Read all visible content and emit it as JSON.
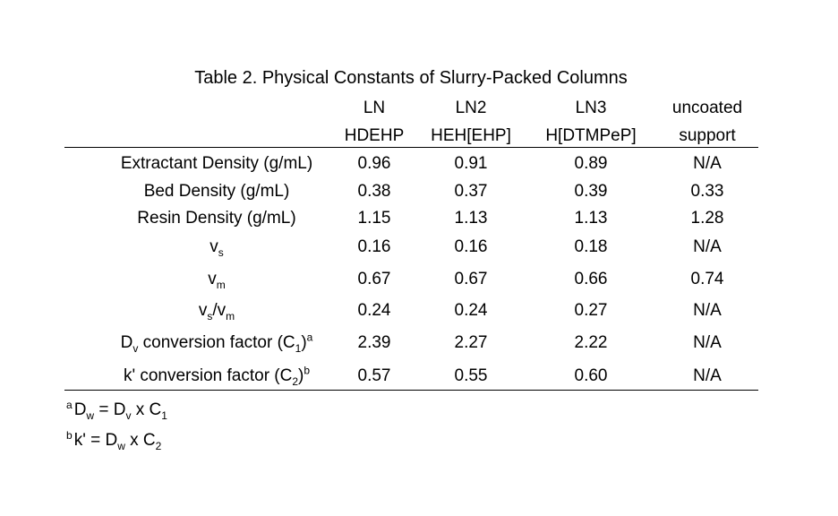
{
  "caption": "Table 2. Physical Constants of Slurry-Packed Columns",
  "columns": [
    {
      "line1": "LN",
      "line2": "HDEHP"
    },
    {
      "line1": "LN2",
      "line2": "HEH[EHP]"
    },
    {
      "line1": "LN3",
      "line2": "H[DTMPeP]"
    },
    {
      "line1": "uncoated",
      "line2": "support"
    }
  ],
  "rows": [
    {
      "label": "Extractant Density (g/mL)",
      "values": [
        "0.96",
        "0.91",
        "0.89",
        "N/A"
      ]
    },
    {
      "label": "Bed Density (g/mL)",
      "values": [
        "0.38",
        "0.37",
        "0.39",
        "0.33"
      ]
    },
    {
      "label": "Resin Density (g/mL)",
      "values": [
        "1.15",
        "1.13",
        "1.13",
        "1.28"
      ]
    },
    {
      "label_main": "v",
      "label_sub": "s",
      "values": [
        "0.16",
        "0.16",
        "0.18",
        "N/A"
      ]
    },
    {
      "label_main": "v",
      "label_sub": "m",
      "values": [
        "0.67",
        "0.67",
        "0.66",
        "0.74"
      ]
    },
    {
      "label_a": "v",
      "label_a_sub": "s",
      "label_b": "/v",
      "label_b_sub": "m",
      "values": [
        "0.24",
        "0.24",
        "0.27",
        "N/A"
      ]
    },
    {
      "label_a": "D",
      "label_a_sub": "v",
      "label_b": " conversion factor (C",
      "label_b_sub": "1",
      "label_c": ")",
      "label_sup": "a",
      "values": [
        "2.39",
        "2.27",
        "2.22",
        "N/A"
      ]
    },
    {
      "label_a": "k' conversion factor (C",
      "label_a_sub": "2",
      "label_c": ")",
      "label_sup": "b",
      "values": [
        "0.57",
        "0.55",
        "0.60",
        "N/A"
      ]
    }
  ],
  "footnotes": {
    "a": {
      "mark": "a",
      "t1": "D",
      "t1_sub": "w",
      "t2": " = D",
      "t2_sub": "v",
      "t3": " x C",
      "t3_sub": "1"
    },
    "b": {
      "mark": "b",
      "t1": "k' = D",
      "t1_sub": "w",
      "t2": " x C",
      "t2_sub": "2"
    }
  }
}
